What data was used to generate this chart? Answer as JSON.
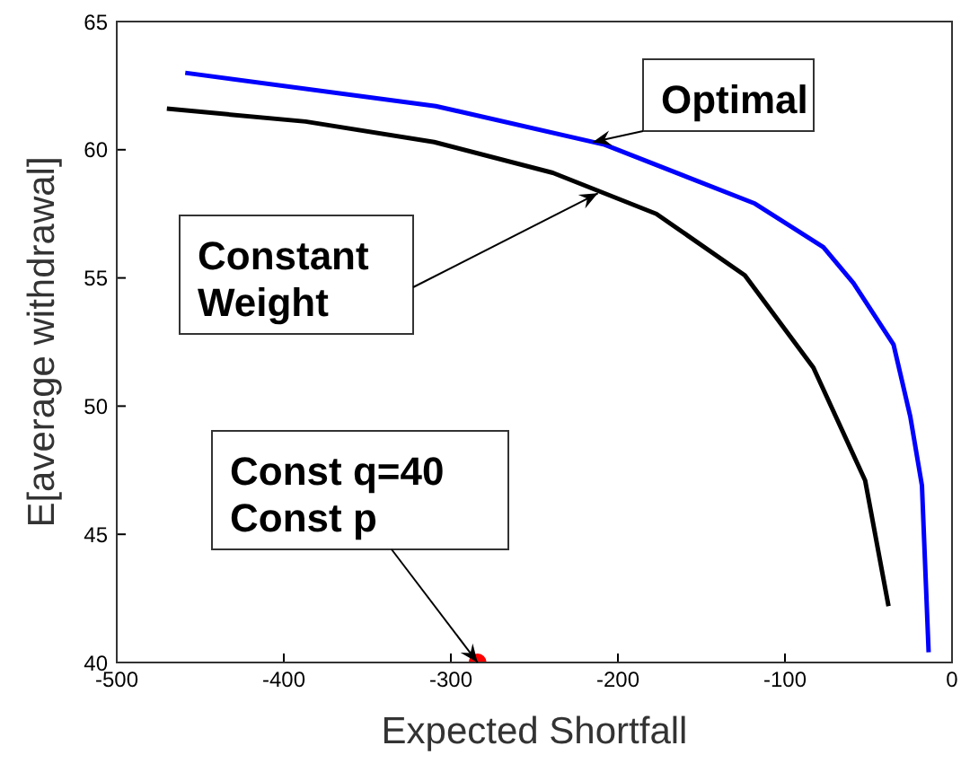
{
  "chart_data": {
    "type": "line",
    "xlabel": "Expected Shortfall",
    "ylabel": "E[average withdrawal]",
    "xlim": [
      -500,
      0
    ],
    "xticks": [
      -500,
      -400,
      -300,
      -200,
      -100,
      0
    ],
    "ylim": [
      40,
      65
    ],
    "yticks": [
      40,
      45,
      50,
      55,
      60,
      65
    ],
    "series": [
      {
        "color": "#0000ff",
        "x": [
          -459,
          -309,
          -208,
          -118,
          -77,
          -59,
          -35,
          -25,
          -18,
          -14
        ],
        "values": [
          63.0,
          61.7,
          60.2,
          57.9,
          56.2,
          54.8,
          52.4,
          49.6,
          46.9,
          40.4
        ]
      },
      {
        "color": "#000000",
        "x": [
          -470,
          -387,
          -310,
          -239,
          -177,
          -124,
          -83,
          -52,
          -38
        ],
        "values": [
          61.6,
          61.1,
          60.3,
          59.1,
          57.5,
          55.1,
          51.5,
          47.1,
          42.2
        ]
      },
      {
        "type": "scatter",
        "color": "#ff0000",
        "x": [
          -284
        ],
        "values": [
          40
        ]
      }
    ],
    "annotations": [
      {
        "text": "Optimal",
        "x": -215,
        "y": 60.3
      },
      {
        "text": "Constant\nWeight",
        "x": -212,
        "y": 58.3
      },
      {
        "text": "Const q=40\nConst p",
        "x": -284,
        "y": 40
      }
    ]
  }
}
